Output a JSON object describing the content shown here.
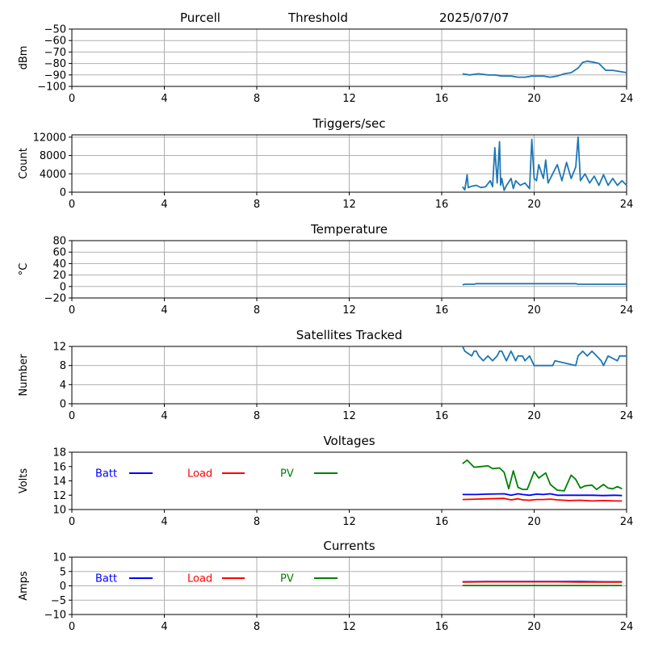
{
  "header": {
    "site": "Purcell",
    "mode": "Threshold",
    "date": "2025/07/07"
  },
  "x_axis": {
    "ticks": [
      0,
      4,
      8,
      12,
      16,
      20,
      24
    ],
    "range": [
      0,
      24
    ]
  },
  "colors": {
    "series_default": "#1f77b4",
    "batt": "#0000ff",
    "load": "#ff0000",
    "pv": "#008000",
    "grid": "#b0b0b0"
  },
  "chart_data": [
    {
      "id": "signal",
      "type": "line",
      "title": "",
      "ylabel": "dBm",
      "ylim": [
        -100,
        -50
      ],
      "yticks": [
        -50,
        -60,
        -70,
        -80,
        -90,
        -100
      ],
      "grid": true,
      "series": [
        {
          "color": "#1f77b4",
          "x": [
            16.9,
            17.2,
            17.6,
            18.0,
            18.3,
            18.6,
            19.0,
            19.3,
            19.6,
            19.9,
            20.1,
            20.4,
            20.7,
            21.0,
            21.3,
            21.6,
            21.9,
            22.1,
            22.3,
            22.6,
            22.8,
            23.1,
            23.4,
            23.7,
            24.0
          ],
          "y": [
            -89,
            -90,
            -89,
            -90,
            -90,
            -91,
            -91,
            -92,
            -92,
            -91,
            -91,
            -91,
            -92,
            -91,
            -89,
            -88,
            -84,
            -79,
            -78,
            -79,
            -80,
            -86,
            -86,
            -87,
            -88
          ]
        }
      ]
    },
    {
      "id": "triggers",
      "type": "line",
      "title": "Triggers/sec",
      "ylabel": "Count",
      "ylim": [
        0,
        12500
      ],
      "yticks": [
        0,
        4000,
        8000,
        12000
      ],
      "grid": true,
      "series": [
        {
          "color": "#1f77b4",
          "x": [
            16.9,
            17.0,
            17.1,
            17.15,
            17.3,
            17.5,
            17.7,
            17.9,
            18.1,
            18.2,
            18.3,
            18.4,
            18.5,
            18.55,
            18.6,
            18.7,
            18.8,
            19.0,
            19.1,
            19.2,
            19.4,
            19.6,
            19.8,
            19.9,
            20.0,
            20.1,
            20.2,
            20.4,
            20.5,
            20.6,
            20.8,
            21.0,
            21.2,
            21.4,
            21.6,
            21.8,
            21.9,
            22.0,
            22.2,
            22.4,
            22.6,
            22.8,
            23.0,
            23.2,
            23.4,
            23.6,
            23.8,
            24.0
          ],
          "y": [
            1200,
            500,
            3800,
            1000,
            1300,
            1500,
            1000,
            1200,
            2500,
            1200,
            9700,
            2000,
            11000,
            1500,
            3000,
            400,
            1400,
            3000,
            800,
            2500,
            1500,
            2000,
            800,
            11500,
            3000,
            2500,
            6000,
            3000,
            7000,
            2000,
            4000,
            6000,
            2500,
            6500,
            3000,
            5500,
            12000,
            2500,
            4000,
            2000,
            3500,
            1500,
            3800,
            1500,
            3000,
            1500,
            2500,
            1500
          ]
        }
      ]
    },
    {
      "id": "temperature",
      "type": "line",
      "title": "Temperature",
      "ylabel": "°C",
      "ylim": [
        -20,
        80
      ],
      "yticks": [
        -20,
        0,
        20,
        40,
        60,
        80
      ],
      "grid": true,
      "series": [
        {
          "color": "#1f77b4",
          "x": [
            16.9,
            17.0,
            17.4,
            17.5,
            21.8,
            21.9,
            24.0
          ],
          "y": [
            3,
            4,
            4,
            5,
            5,
            4,
            4
          ]
        }
      ]
    },
    {
      "id": "satellites",
      "type": "line",
      "title": "Satellites Tracked",
      "ylabel": "Number",
      "ylim": [
        0,
        12
      ],
      "yticks": [
        0,
        4,
        8,
        12
      ],
      "grid": true,
      "series": [
        {
          "color": "#1f77b4",
          "x": [
            16.9,
            17.0,
            17.3,
            17.4,
            17.5,
            17.6,
            17.8,
            18.0,
            18.2,
            18.4,
            18.5,
            18.6,
            18.8,
            19.0,
            19.2,
            19.3,
            19.5,
            19.6,
            19.8,
            20.0,
            20.8,
            20.9,
            21.8,
            21.9,
            22.1,
            22.3,
            22.5,
            22.7,
            22.9,
            23.0,
            23.2,
            23.6,
            23.7,
            24.0
          ],
          "y": [
            12,
            11,
            10,
            11,
            11,
            10,
            9,
            10,
            9,
            10,
            11,
            11,
            9,
            11,
            9,
            10,
            10,
            9,
            10,
            8,
            8,
            9,
            8,
            10,
            11,
            10,
            11,
            10,
            9,
            8,
            10,
            9,
            10,
            10
          ]
        }
      ]
    },
    {
      "id": "voltages",
      "type": "line",
      "title": "Voltages",
      "ylabel": "Volts",
      "ylim": [
        10,
        18
      ],
      "yticks": [
        10,
        12,
        14,
        16,
        18
      ],
      "grid": false,
      "legend": [
        {
          "label": "Batt",
          "color": "#0000ff"
        },
        {
          "label": "Load",
          "color": "#ff0000"
        },
        {
          "label": "PV",
          "color": "#008000"
        }
      ],
      "series": [
        {
          "name": "Batt",
          "color": "#0000ff",
          "x": [
            16.9,
            17.5,
            18.0,
            18.7,
            19.0,
            19.3,
            19.5,
            19.8,
            20.1,
            20.4,
            20.7,
            21.0,
            21.5,
            22.0,
            22.5,
            23.0,
            23.5,
            23.8
          ],
          "y": [
            12.1,
            12.1,
            12.15,
            12.2,
            12.0,
            12.2,
            12.1,
            12.0,
            12.15,
            12.1,
            12.2,
            12.0,
            12.0,
            12.0,
            12.0,
            11.95,
            12.0,
            11.95
          ]
        },
        {
          "name": "Load",
          "color": "#ff0000",
          "x": [
            16.9,
            17.5,
            18.0,
            18.7,
            19.0,
            19.3,
            19.5,
            19.8,
            20.1,
            20.4,
            20.7,
            21.0,
            21.5,
            22.0,
            22.5,
            23.0,
            23.5,
            23.8
          ],
          "y": [
            11.4,
            11.45,
            11.5,
            11.55,
            11.35,
            11.5,
            11.35,
            11.3,
            11.4,
            11.4,
            11.45,
            11.35,
            11.25,
            11.3,
            11.2,
            11.25,
            11.2,
            11.2
          ]
        },
        {
          "name": "PV",
          "color": "#008000",
          "x": [
            16.9,
            17.1,
            17.4,
            17.7,
            18.0,
            18.2,
            18.5,
            18.7,
            18.9,
            19.1,
            19.3,
            19.5,
            19.7,
            20.0,
            20.2,
            20.5,
            20.7,
            21.0,
            21.3,
            21.6,
            21.8,
            22.0,
            22.2,
            22.5,
            22.7,
            23.0,
            23.2,
            23.4,
            23.6,
            23.8
          ],
          "y": [
            16.4,
            16.9,
            15.9,
            16.0,
            16.1,
            15.7,
            15.8,
            15.2,
            12.9,
            15.4,
            13.1,
            12.8,
            12.8,
            15.3,
            14.4,
            15.1,
            13.5,
            12.7,
            12.6,
            14.8,
            14.2,
            13.0,
            13.3,
            13.4,
            12.8,
            13.5,
            13.0,
            12.9,
            13.2,
            12.9
          ]
        }
      ]
    },
    {
      "id": "currents",
      "type": "line",
      "title": "Currents",
      "ylabel": "Amps",
      "ylim": [
        -10,
        10
      ],
      "yticks": [
        -10,
        -5,
        0,
        5,
        10
      ],
      "grid": true,
      "legend": [
        {
          "label": "Batt",
          "color": "#0000ff"
        },
        {
          "label": "Load",
          "color": "#ff0000"
        },
        {
          "label": "PV",
          "color": "#008000"
        }
      ],
      "series": [
        {
          "name": "Batt",
          "color": "#0000ff",
          "x": [
            16.9,
            18.0,
            19.0,
            20.0,
            21.0,
            22.0,
            23.0,
            23.8
          ],
          "y": [
            1.4,
            1.5,
            1.5,
            1.5,
            1.5,
            1.5,
            1.4,
            1.4
          ]
        },
        {
          "name": "Load",
          "color": "#ff0000",
          "x": [
            16.9,
            18.0,
            19.0,
            20.0,
            21.0,
            22.0,
            23.0,
            23.8
          ],
          "y": [
            1.3,
            1.4,
            1.4,
            1.4,
            1.4,
            1.3,
            1.3,
            1.3
          ]
        },
        {
          "name": "PV",
          "color": "#008000",
          "x": [
            16.9,
            18.0,
            19.0,
            20.0,
            21.0,
            22.0,
            23.0,
            23.8
          ],
          "y": [
            0.1,
            0.1,
            0.1,
            0.1,
            0.1,
            0.1,
            0.1,
            0.1
          ]
        }
      ]
    }
  ]
}
